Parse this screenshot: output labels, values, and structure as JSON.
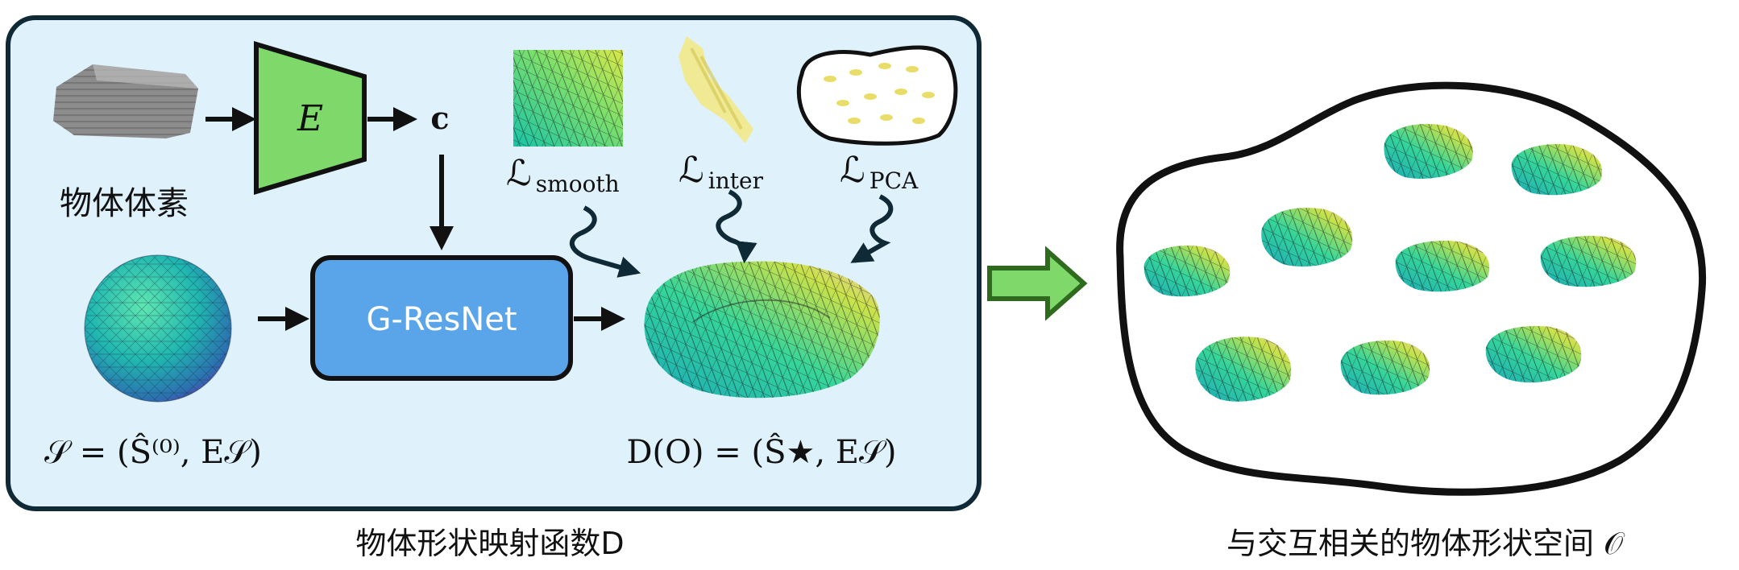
{
  "left_panel": {
    "voxel_label": "物体体素",
    "encoder_label": "E",
    "code_label": "c",
    "network_label": "G-ResNet",
    "sphere_formula": "𝒮 = (Ŝ⁽⁰⁾, E𝒮)",
    "output_formula": "D(O) = (Ŝ★, E𝒮)",
    "losses": [
      {
        "symbol": "ℒ",
        "subscript": "smooth"
      },
      {
        "symbol": "ℒ",
        "subscript": "inter"
      },
      {
        "symbol": "ℒ",
        "subscript": "PCA"
      }
    ]
  },
  "captions": {
    "left": "物体形状映射函数D",
    "right": "与交互相关的物体形状空间 𝒪"
  },
  "colors": {
    "panel_fill": "#dff1fb",
    "encoder_fill": "#7fd86a",
    "network_fill": "#5aa4ea",
    "transfer_arrow_fill": "#7fd86a",
    "transfer_arrow_stroke": "#2f6b1f"
  },
  "icons": {
    "voxel": "voxel-grid-icon",
    "sphere": "mesh-sphere-icon",
    "mesh_output": "deformed-mesh-icon",
    "shape_space": "shape-space-blob-icon"
  }
}
